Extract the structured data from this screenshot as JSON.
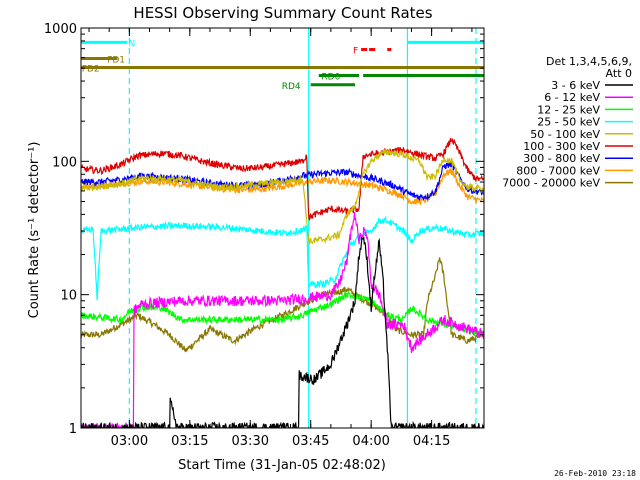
{
  "chart_data": {
    "type": "line",
    "title": "HESSI Observing Summary Count Rates",
    "xlabel": "Start Time (31-Jan-05 02:48:02)",
    "ylabel": "Count Rate (s⁻¹ detector⁻¹)",
    "x_unit": "minutes since 02:48:02",
    "xlim": [
      0,
      100
    ],
    "ylim": [
      1,
      1000
    ],
    "y_scale": "log",
    "grid": false,
    "x_ticks": [
      {
        "value": 12,
        "label": "03:00"
      },
      {
        "value": 27,
        "label": "03:15"
      },
      {
        "value": 42,
        "label": "03:30"
      },
      {
        "value": 57,
        "label": "03:45"
      },
      {
        "value": 72,
        "label": "04:00"
      },
      {
        "value": 87,
        "label": "04:15"
      }
    ],
    "y_ticks": [
      {
        "value": 1,
        "label": "1"
      },
      {
        "value": 10,
        "label": "10"
      },
      {
        "value": 100,
        "label": "100"
      },
      {
        "value": 1000,
        "label": "1000"
      }
    ],
    "legend": {
      "placement": "right",
      "header_lines": [
        "Det 1,3,4,5,6,9,",
        "Att 0"
      ]
    },
    "series": [
      {
        "name": "3 - 6 keV",
        "color": "#000000",
        "points": [
          [
            0,
            1
          ],
          [
            22,
            1
          ],
          [
            22,
            1.6
          ],
          [
            24,
            1
          ],
          [
            54,
            1
          ],
          [
            54,
            2.5
          ],
          [
            58,
            2.3
          ],
          [
            62,
            3
          ],
          [
            66,
            6
          ],
          [
            68,
            9
          ],
          [
            69,
            20
          ],
          [
            70,
            28
          ],
          [
            71,
            18
          ],
          [
            72,
            8
          ],
          [
            73,
            15
          ],
          [
            74,
            25
          ],
          [
            75,
            12
          ],
          [
            76,
            4
          ],
          [
            77,
            1
          ],
          [
            100,
            1
          ]
        ]
      },
      {
        "name": "6 - 12 keV",
        "color": "#ff00ff",
        "points": [
          [
            0,
            1
          ],
          [
            13,
            1
          ],
          [
            13,
            7.5
          ],
          [
            15,
            8.5
          ],
          [
            25,
            9
          ],
          [
            40,
            9
          ],
          [
            50,
            9
          ],
          [
            57,
            9.5
          ],
          [
            62,
            10
          ],
          [
            64,
            12
          ],
          [
            66,
            18
          ],
          [
            67,
            30
          ],
          [
            68,
            40
          ],
          [
            69,
            25
          ],
          [
            70,
            30
          ],
          [
            71,
            28
          ],
          [
            72,
            12
          ],
          [
            74,
            10
          ],
          [
            76,
            6
          ],
          [
            80,
            6
          ],
          [
            82,
            4
          ],
          [
            90,
            6.5
          ],
          [
            100,
            5
          ]
        ]
      },
      {
        "name": "12 - 25 keV",
        "color": "#00ff00",
        "points": [
          [
            0,
            7
          ],
          [
            10,
            6.5
          ],
          [
            12,
            7.5
          ],
          [
            15,
            8
          ],
          [
            20,
            8
          ],
          [
            25,
            6.5
          ],
          [
            35,
            6.5
          ],
          [
            50,
            6.5
          ],
          [
            55,
            7
          ],
          [
            57,
            7.5
          ],
          [
            62,
            8.5
          ],
          [
            66,
            10
          ],
          [
            70,
            9.5
          ],
          [
            72,
            9
          ],
          [
            76,
            7
          ],
          [
            80,
            6.5
          ],
          [
            82,
            8
          ],
          [
            86,
            6.5
          ],
          [
            90,
            6
          ],
          [
            100,
            5
          ]
        ]
      },
      {
        "name": "25 - 50 keV",
        "color": "#00ffff",
        "points": [
          [
            0,
            30
          ],
          [
            3,
            31
          ],
          [
            4,
            9.5
          ],
          [
            5,
            30
          ],
          [
            10,
            31
          ],
          [
            15,
            32
          ],
          [
            25,
            33
          ],
          [
            35,
            32
          ],
          [
            45,
            30
          ],
          [
            50,
            29
          ],
          [
            54,
            30
          ],
          [
            56,
            31
          ],
          [
            56.5,
            12
          ],
          [
            60,
            12
          ],
          [
            63,
            13
          ],
          [
            65,
            18
          ],
          [
            67,
            24
          ],
          [
            69,
            27
          ],
          [
            72,
            30
          ],
          [
            74,
            36
          ],
          [
            76,
            36
          ],
          [
            80,
            30
          ],
          [
            82,
            25
          ],
          [
            84,
            30
          ],
          [
            88,
            32
          ],
          [
            92,
            30
          ],
          [
            96,
            28
          ],
          [
            100,
            29
          ]
        ]
      },
      {
        "name": "50 - 100 keV",
        "color": "#ccbb00",
        "points": [
          [
            0,
            63
          ],
          [
            5,
            65
          ],
          [
            10,
            68
          ],
          [
            15,
            75
          ],
          [
            20,
            74
          ],
          [
            25,
            72
          ],
          [
            30,
            67
          ],
          [
            35,
            64
          ],
          [
            40,
            65
          ],
          [
            45,
            68
          ],
          [
            50,
            70
          ],
          [
            55,
            75
          ],
          [
            56.5,
            25
          ],
          [
            60,
            26
          ],
          [
            64,
            28
          ],
          [
            66,
            40
          ],
          [
            68,
            46
          ],
          [
            70,
            80
          ],
          [
            72,
            100
          ],
          [
            74,
            112
          ],
          [
            76,
            118
          ],
          [
            80,
            112
          ],
          [
            84,
            100
          ],
          [
            86,
            75
          ],
          [
            88,
            78
          ],
          [
            90,
            105
          ],
          [
            92,
            100
          ],
          [
            94,
            72
          ],
          [
            96,
            64
          ],
          [
            100,
            62
          ]
        ]
      },
      {
        "name": "100 - 300 keV",
        "color": "#dd0000",
        "points": [
          [
            0,
            88
          ],
          [
            5,
            85
          ],
          [
            10,
            95
          ],
          [
            14,
            110
          ],
          [
            20,
            115
          ],
          [
            25,
            110
          ],
          [
            30,
            100
          ],
          [
            35,
            93
          ],
          [
            40,
            88
          ],
          [
            45,
            90
          ],
          [
            50,
            95
          ],
          [
            55,
            100
          ],
          [
            56,
            112
          ],
          [
            56.5,
            38
          ],
          [
            60,
            42
          ],
          [
            62,
            44
          ],
          [
            66,
            42
          ],
          [
            69,
            44
          ],
          [
            70,
            110
          ],
          [
            74,
            115
          ],
          [
            78,
            120
          ],
          [
            80,
            122
          ],
          [
            84,
            112
          ],
          [
            88,
            105
          ],
          [
            90,
            115
          ],
          [
            92,
            148
          ],
          [
            94,
            115
          ],
          [
            96,
            85
          ],
          [
            98,
            74
          ],
          [
            100,
            73
          ]
        ]
      },
      {
        "name": "300 - 800 keV",
        "color": "#0000ff",
        "points": [
          [
            0,
            70
          ],
          [
            5,
            70
          ],
          [
            10,
            73
          ],
          [
            15,
            78
          ],
          [
            20,
            76
          ],
          [
            25,
            74
          ],
          [
            30,
            70
          ],
          [
            35,
            67
          ],
          [
            40,
            66
          ],
          [
            45,
            67
          ],
          [
            50,
            72
          ],
          [
            55,
            78
          ],
          [
            58,
            80
          ],
          [
            62,
            82
          ],
          [
            66,
            83
          ],
          [
            69,
            78
          ],
          [
            72,
            75
          ],
          [
            75,
            70
          ],
          [
            78,
            65
          ],
          [
            80,
            60
          ],
          [
            82,
            56
          ],
          [
            84,
            54
          ],
          [
            86,
            55
          ],
          [
            88,
            60
          ],
          [
            90,
            92
          ],
          [
            92,
            95
          ],
          [
            94,
            75
          ],
          [
            96,
            62
          ],
          [
            100,
            58
          ]
        ]
      },
      {
        "name": "800 - 7000 keV",
        "color": "#ff9900",
        "points": [
          [
            0,
            65
          ],
          [
            5,
            66
          ],
          [
            10,
            68
          ],
          [
            15,
            71
          ],
          [
            20,
            70
          ],
          [
            25,
            68
          ],
          [
            30,
            65
          ],
          [
            35,
            62
          ],
          [
            40,
            61
          ],
          [
            45,
            62
          ],
          [
            50,
            65
          ],
          [
            55,
            69
          ],
          [
            58,
            71
          ],
          [
            62,
            72
          ],
          [
            66,
            70
          ],
          [
            69,
            68
          ],
          [
            72,
            66
          ],
          [
            75,
            62
          ],
          [
            78,
            58
          ],
          [
            80,
            55
          ],
          [
            82,
            50
          ],
          [
            84,
            50
          ],
          [
            86,
            52
          ],
          [
            88,
            58
          ],
          [
            90,
            80
          ],
          [
            92,
            85
          ],
          [
            94,
            65
          ],
          [
            96,
            54
          ],
          [
            100,
            50
          ]
        ]
      },
      {
        "name": "7000 - 20000 keV",
        "color": "#887700",
        "points": [
          [
            0,
            5
          ],
          [
            5,
            5
          ],
          [
            10,
            6
          ],
          [
            14,
            7
          ],
          [
            18,
            6
          ],
          [
            22,
            5
          ],
          [
            26,
            3.8
          ],
          [
            32,
            5.5
          ],
          [
            38,
            4.5
          ],
          [
            45,
            6
          ],
          [
            50,
            7
          ],
          [
            55,
            8.5
          ],
          [
            60,
            10
          ],
          [
            64,
            10.5
          ],
          [
            66,
            11
          ],
          [
            68,
            10
          ],
          [
            72,
            8.5
          ],
          [
            76,
            7
          ],
          [
            78,
            5.5
          ],
          [
            82,
            5
          ],
          [
            85,
            5
          ],
          [
            86,
            9
          ],
          [
            88,
            14
          ],
          [
            89,
            19
          ],
          [
            90,
            14
          ],
          [
            91,
            8
          ],
          [
            92,
            5
          ],
          [
            96,
            4.5
          ],
          [
            100,
            5
          ]
        ]
      }
    ],
    "attenuator_flag_label": "N",
    "flag_bars": [
      {
        "label": "N",
        "color": "#00ffff",
        "level": 780,
        "ranges": [
          [
            0,
            11.5
          ],
          [
            81,
            100
          ]
        ]
      },
      {
        "label": "FD1",
        "color": "#887700",
        "level": 590,
        "ranges": [
          [
            0,
            9
          ]
        ]
      },
      {
        "label": "FD2",
        "color": "#887700",
        "level": 505,
        "ranges": [
          [
            0,
            100
          ]
        ]
      },
      {
        "label": "F",
        "color": "#ff0000",
        "level": 690,
        "ranges": [
          [
            69.5,
            71
          ],
          [
            71.5,
            73
          ],
          [
            76,
            77
          ]
        ],
        "dashed": true
      },
      {
        "label": "RD0",
        "color": "#008800",
        "level": 440,
        "ranges": [
          [
            59,
            69
          ],
          [
            70,
            100
          ]
        ]
      },
      {
        "label": "RD4",
        "color": "#008800",
        "level": 375,
        "ranges": [
          [
            57,
            68
          ]
        ]
      }
    ],
    "vertical_markers": [
      {
        "value": 12,
        "style": "dashed",
        "color": "#00ffff"
      },
      {
        "value": 56.5,
        "style": "solid",
        "color": "#00ffff"
      },
      {
        "value": 81,
        "style": "solid",
        "color": "#00ffff"
      },
      {
        "value": 98,
        "style": "dashed",
        "color": "#00ffff"
      }
    ]
  },
  "footer": {
    "timestamp": "26-Feb-2010 23:18"
  }
}
